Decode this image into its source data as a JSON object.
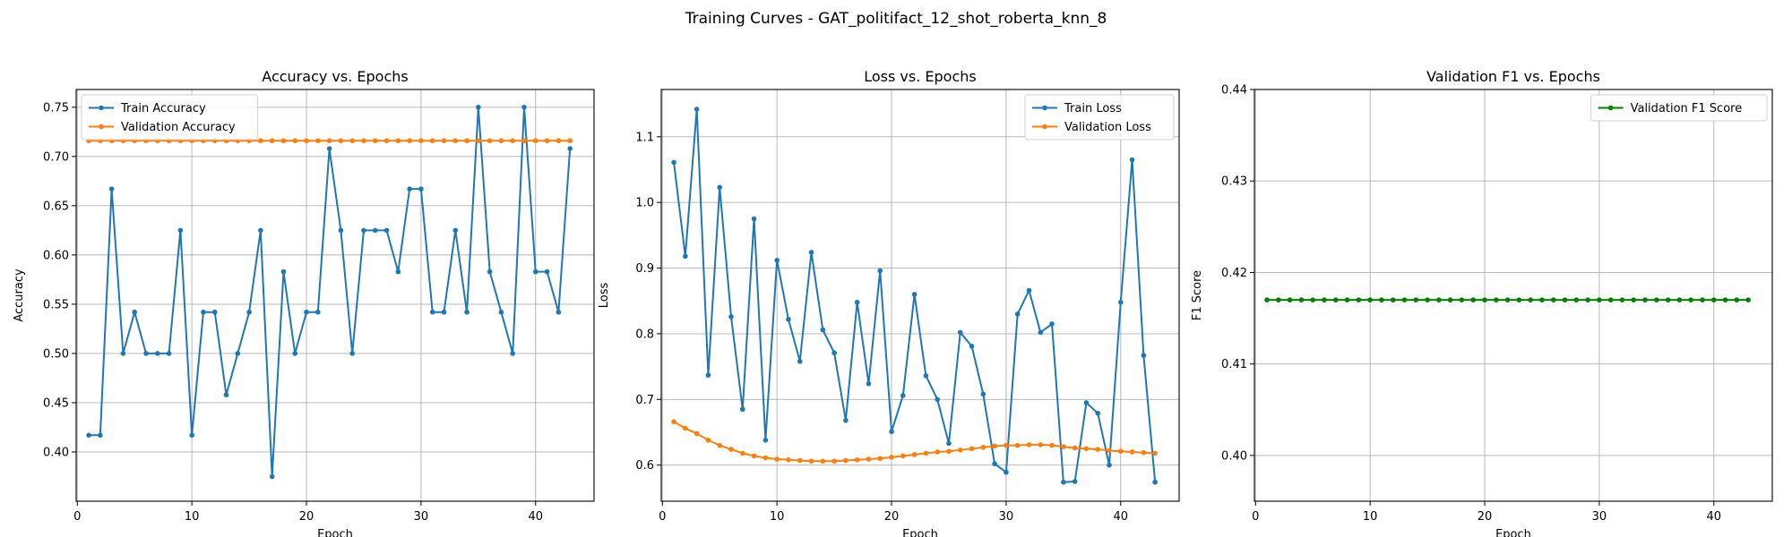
{
  "figure_title": "Training Curves - GAT_politifact_12_shot_roberta_knn_8",
  "chart_data": [
    {
      "type": "line",
      "title": "Accuracy vs. Epochs",
      "xlabel": "Epoch",
      "ylabel": "Accuracy",
      "xlim": [
        -0.1,
        45.1
      ],
      "ylim": [
        0.35,
        0.768
      ],
      "xticks": [
        0,
        10,
        20,
        30,
        40
      ],
      "yticks": [
        0.4,
        0.45,
        0.5,
        0.55,
        0.6,
        0.65,
        0.7,
        0.75
      ],
      "ytick_decimals": 2,
      "grid": true,
      "legend_position": "upper-left",
      "x": [
        1,
        2,
        3,
        4,
        5,
        6,
        7,
        8,
        9,
        10,
        11,
        12,
        13,
        14,
        15,
        16,
        17,
        18,
        19,
        20,
        21,
        22,
        23,
        24,
        25,
        26,
        27,
        28,
        29,
        30,
        31,
        32,
        33,
        34,
        35,
        36,
        37,
        38,
        39,
        40,
        41,
        42,
        43
      ],
      "series": [
        {
          "name": "Train Accuracy",
          "color": "#1f77b4",
          "values": [
            0.417,
            0.417,
            0.667,
            0.5,
            0.542,
            0.5,
            0.5,
            0.5,
            0.625,
            0.417,
            0.542,
            0.542,
            0.458,
            0.5,
            0.542,
            0.625,
            0.375,
            0.583,
            0.5,
            0.542,
            0.542,
            0.708,
            0.625,
            0.5,
            0.625,
            0.625,
            0.625,
            0.583,
            0.667,
            0.667,
            0.542,
            0.542,
            0.625,
            0.542,
            0.75,
            0.583,
            0.542,
            0.5,
            0.75,
            0.583,
            0.583,
            0.542,
            0.708
          ]
        },
        {
          "name": "Validation Accuracy",
          "color": "#ff7f0e",
          "values": [
            0.716,
            0.716,
            0.716,
            0.716,
            0.716,
            0.716,
            0.716,
            0.716,
            0.716,
            0.716,
            0.716,
            0.716,
            0.716,
            0.716,
            0.716,
            0.716,
            0.716,
            0.716,
            0.716,
            0.716,
            0.716,
            0.716,
            0.716,
            0.716,
            0.716,
            0.716,
            0.716,
            0.716,
            0.716,
            0.716,
            0.716,
            0.716,
            0.716,
            0.716,
            0.716,
            0.716,
            0.716,
            0.716,
            0.716,
            0.716,
            0.716,
            0.716,
            0.716
          ]
        }
      ]
    },
    {
      "type": "line",
      "title": "Loss vs. Epochs",
      "xlabel": "Epoch",
      "ylabel": "Loss",
      "xlim": [
        -0.1,
        45.1
      ],
      "ylim": [
        0.545,
        1.172
      ],
      "xticks": [
        0,
        10,
        20,
        30,
        40
      ],
      "yticks": [
        0.6,
        0.7,
        0.8,
        0.9,
        1.0,
        1.1
      ],
      "ytick_decimals": 1,
      "grid": true,
      "legend_position": "upper-right",
      "x": [
        1,
        2,
        3,
        4,
        5,
        6,
        7,
        8,
        9,
        10,
        11,
        12,
        13,
        14,
        15,
        16,
        17,
        18,
        19,
        20,
        21,
        22,
        23,
        24,
        25,
        26,
        27,
        28,
        29,
        30,
        31,
        32,
        33,
        34,
        35,
        36,
        37,
        38,
        39,
        40,
        41,
        42,
        43
      ],
      "series": [
        {
          "name": "Train Loss",
          "color": "#1f77b4",
          "values": [
            1.061,
            0.918,
            1.142,
            0.737,
            1.023,
            0.826,
            0.685,
            0.975,
            0.638,
            0.912,
            0.822,
            0.758,
            0.924,
            0.806,
            0.771,
            0.668,
            0.848,
            0.724,
            0.896,
            0.651,
            0.706,
            0.86,
            0.736,
            0.7,
            0.633,
            0.802,
            0.781,
            0.708,
            0.602,
            0.589,
            0.83,
            0.866,
            0.802,
            0.815,
            0.574,
            0.575,
            0.695,
            0.679,
            0.6,
            0.848,
            1.065,
            0.767,
            0.574
          ]
        },
        {
          "name": "Validation Loss",
          "color": "#ff7f0e",
          "values": [
            0.666,
            0.656,
            0.648,
            0.638,
            0.63,
            0.624,
            0.618,
            0.614,
            0.611,
            0.609,
            0.608,
            0.607,
            0.606,
            0.606,
            0.606,
            0.607,
            0.608,
            0.609,
            0.61,
            0.612,
            0.614,
            0.616,
            0.618,
            0.62,
            0.621,
            0.623,
            0.625,
            0.627,
            0.629,
            0.63,
            0.63,
            0.631,
            0.631,
            0.63,
            0.628,
            0.626,
            0.625,
            0.624,
            0.622,
            0.621,
            0.62,
            0.619,
            0.618
          ]
        }
      ]
    },
    {
      "type": "line",
      "title": "Validation F1 vs. Epochs",
      "xlabel": "Epoch",
      "ylabel": "F1 Score",
      "xlim": [
        -0.1,
        45.1
      ],
      "ylim": [
        0.395,
        0.44
      ],
      "xticks": [
        0,
        10,
        20,
        30,
        40
      ],
      "yticks": [
        0.4,
        0.41,
        0.42,
        0.43,
        0.44
      ],
      "ytick_decimals": 2,
      "grid": true,
      "legend_position": "upper-right",
      "x": [
        1,
        2,
        3,
        4,
        5,
        6,
        7,
        8,
        9,
        10,
        11,
        12,
        13,
        14,
        15,
        16,
        17,
        18,
        19,
        20,
        21,
        22,
        23,
        24,
        25,
        26,
        27,
        28,
        29,
        30,
        31,
        32,
        33,
        34,
        35,
        36,
        37,
        38,
        39,
        40,
        41,
        42,
        43
      ],
      "series": [
        {
          "name": "Validation F1 Score",
          "color": "#008000",
          "values": [
            0.417,
            0.417,
            0.417,
            0.417,
            0.417,
            0.417,
            0.417,
            0.417,
            0.417,
            0.417,
            0.417,
            0.417,
            0.417,
            0.417,
            0.417,
            0.417,
            0.417,
            0.417,
            0.417,
            0.417,
            0.417,
            0.417,
            0.417,
            0.417,
            0.417,
            0.417,
            0.417,
            0.417,
            0.417,
            0.417,
            0.417,
            0.417,
            0.417,
            0.417,
            0.417,
            0.417,
            0.417,
            0.417,
            0.417,
            0.417,
            0.417,
            0.417,
            0.417
          ]
        }
      ]
    }
  ]
}
